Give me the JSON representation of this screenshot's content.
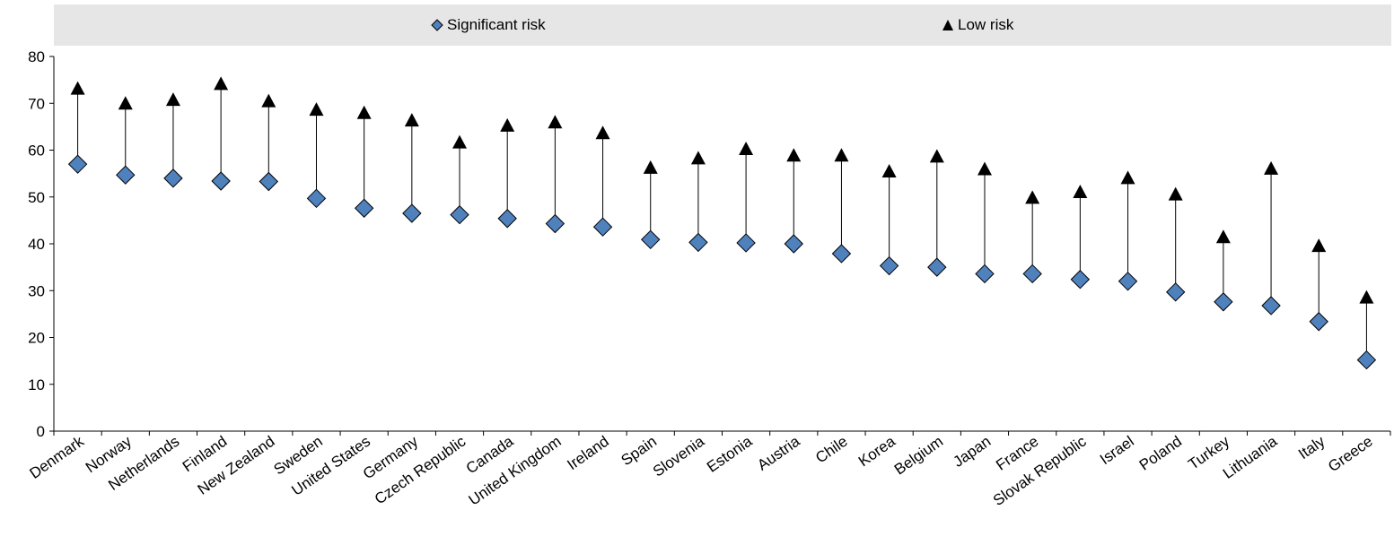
{
  "chart_data": {
    "type": "scatter",
    "categories": [
      "Denmark",
      "Norway",
      "Netherlands",
      "Finland",
      "New Zealand",
      "Sweden",
      "United States",
      "Germany",
      "Czech Republic",
      "Canada",
      "United Kingdom",
      "Ireland",
      "Spain",
      "Slovenia",
      "Estonia",
      "Austria",
      "Chile",
      "Korea",
      "Belgium",
      "Japan",
      "France",
      "Slovak Republic",
      "Israel",
      "Poland",
      "Turkey",
      "Lithuania",
      "Italy",
      "Greece"
    ],
    "series": [
      {
        "name": "Significant risk",
        "marker": "diamond",
        "color": "#4f81bd",
        "values": [
          57,
          54.7,
          54,
          53.4,
          53.3,
          49.7,
          47.6,
          46.5,
          46.2,
          45.4,
          44.3,
          43.6,
          40.9,
          40.3,
          40.2,
          40,
          37.9,
          35.3,
          35,
          33.6,
          33.6,
          32.4,
          32,
          29.7,
          27.6,
          26.8,
          23.4,
          15.2
        ]
      },
      {
        "name": "Low risk",
        "marker": "triangle",
        "color": "#000000",
        "values": [
          73,
          69.8,
          70.6,
          74,
          70.3,
          68.5,
          67.8,
          66.2,
          61.5,
          65.1,
          65.8,
          63.5,
          56.1,
          58.1,
          60.1,
          58.7,
          58.7,
          55.3,
          58.5,
          55.8,
          49.7,
          50.9,
          53.9,
          50.4,
          41.3,
          55.9,
          39.4,
          28.4
        ]
      }
    ],
    "yticks": [
      0,
      10,
      20,
      30,
      40,
      50,
      60,
      70,
      80
    ],
    "ylim": [
      0,
      80
    ],
    "grid": false,
    "legend_position": "top"
  }
}
